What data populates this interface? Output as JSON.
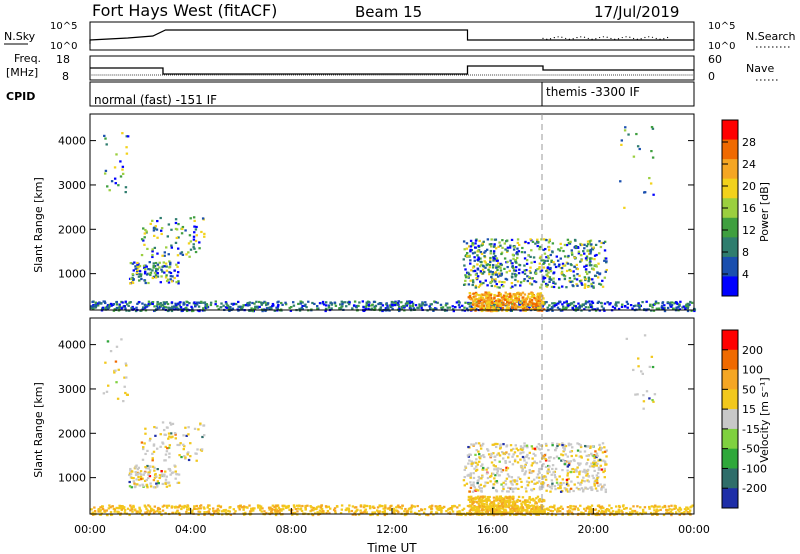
{
  "header": {
    "title": "Fort Hays West (fitACF)",
    "beam": "Beam 15",
    "date": "17/Jul/2019"
  },
  "noise_panel": {
    "left_label": "N.Sky",
    "right_label": "N.Search",
    "left_ticks": [
      "10^5",
      "10^0"
    ],
    "right_ticks": [
      "10^5",
      "10^0"
    ]
  },
  "freq_panel": {
    "left_label_1": "Freq.",
    "left_label_2": "[MHz]",
    "right_label": "Nave",
    "left_ticks": [
      "18",
      "8"
    ],
    "right_ticks": [
      "60",
      "0"
    ]
  },
  "cpid_panel": {
    "label": "CPID",
    "mode1": "normal (fast) -151 IF",
    "mode2": "themis -3300 IF"
  },
  "x_axis": {
    "label": "Time UT",
    "ticks": [
      "00:00",
      "04:00",
      "08:00",
      "12:00",
      "16:00",
      "20:00",
      "00:00"
    ]
  },
  "chart_data": [
    {
      "type": "heatmap",
      "title": "",
      "ylabel": "Slant Range [km]",
      "xlabel": "",
      "y_ticks": [
        "1000",
        "2000",
        "3000",
        "4000"
      ],
      "ylim": [
        180,
        4600
      ],
      "xlim_hours": [
        0,
        24
      ],
      "colorbar_label": "Power [dB]",
      "colorbar_ticks": [
        "4",
        "8",
        "12",
        "16",
        "20",
        "24",
        "28"
      ],
      "colors": [
        "#0000ff",
        "#1a4fae",
        "#2f7d6e",
        "#3f9f3f",
        "#9bcf3f",
        "#f2d21c",
        "#f5a623",
        "#f06a00",
        "#ff0000"
      ]
    },
    {
      "type": "heatmap",
      "title": "",
      "ylabel": "Slant Range [km]",
      "xlabel": "Time UT",
      "y_ticks": [
        "1000",
        "2000",
        "3000",
        "4000"
      ],
      "ylim": [
        180,
        4600
      ],
      "xlim_hours": [
        0,
        24
      ],
      "colorbar_label": "Velocity [m s⁻¹]",
      "colorbar_ticks": [
        "200",
        "100",
        "50",
        "15",
        "-15",
        "-50",
        "-100",
        "-200"
      ],
      "colors": [
        "#1f2fa8",
        "#2f6d6a",
        "#2fa83a",
        "#7fd13f",
        "#c8c8c8",
        "#f2c81c",
        "#f5a623",
        "#f06a00",
        "#ff0000"
      ]
    }
  ]
}
